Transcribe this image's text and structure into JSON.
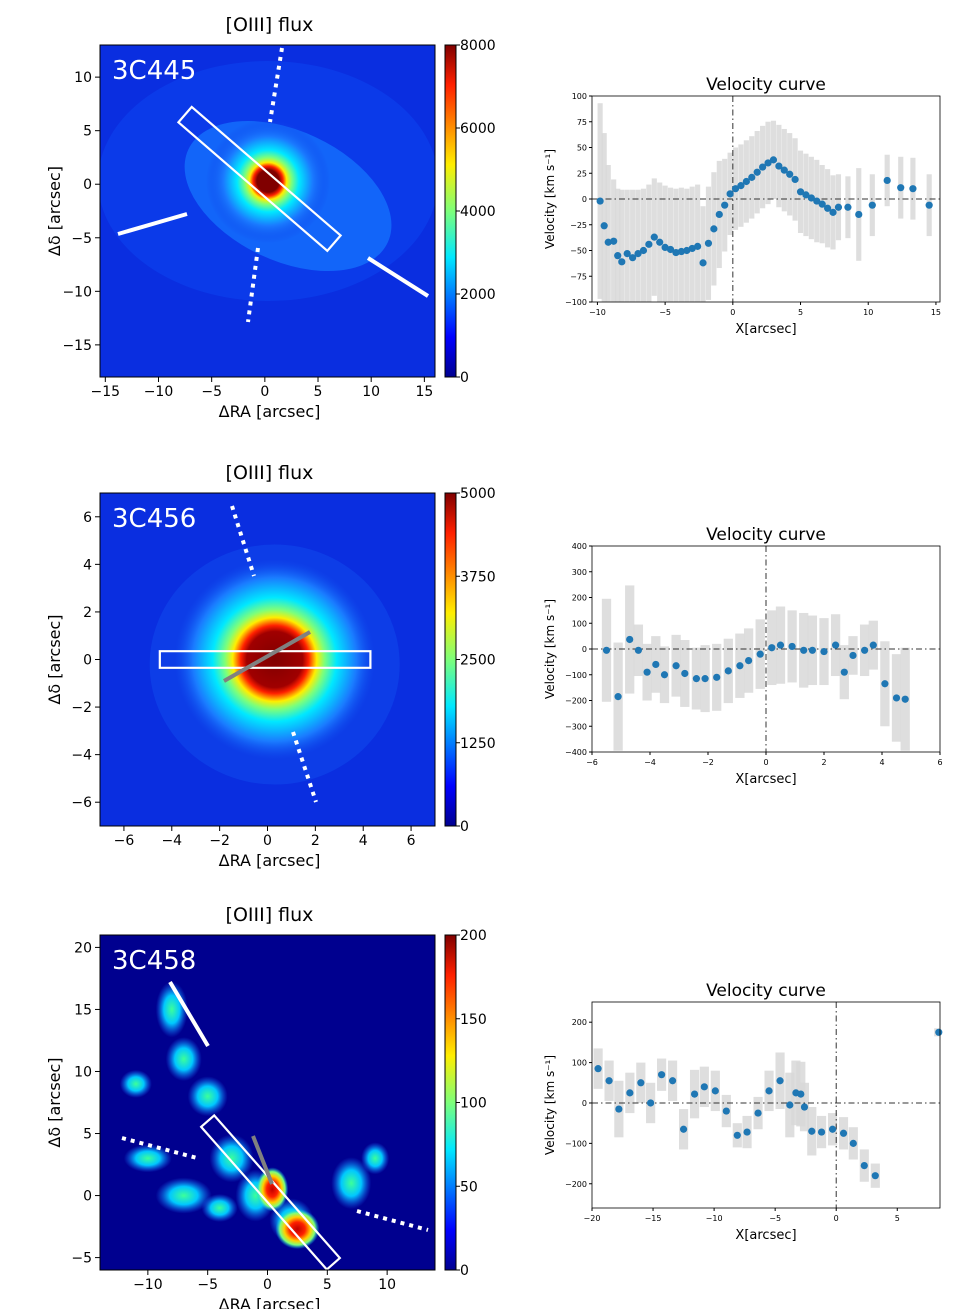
{
  "panels": [
    {
      "source": "3C445",
      "map": {
        "title": "[OIII] flux",
        "xlabel": "ΔRA [arcsec]",
        "ylabel": "Δδ [arcsec]",
        "xlim": [
          -15.5,
          16
        ],
        "ylim": [
          -18,
          13
        ],
        "xticks": [
          -15,
          -10,
          -5,
          0,
          5,
          10,
          15
        ],
        "yticks": [
          -15,
          -10,
          -5,
          0,
          5,
          10
        ],
        "colorbar": {
          "min": 0,
          "max": 8000,
          "ticks": [
            0,
            2000,
            4000,
            6000,
            8000
          ]
        },
        "peak": {
          "x": 0.3,
          "y": 0.3
        },
        "slit": {
          "x1": -7.5,
          "y1": 6.5,
          "x2": 6.5,
          "y2": -5.5,
          "width": 1.9
        }
      },
      "velocity": {
        "title": "Velocity curve",
        "xlabel": "X[arcsec]",
        "ylabel": "Velocity [km s⁻¹]",
        "xlim": [
          -10.4,
          15.3
        ],
        "ylim": [
          -100,
          100
        ],
        "xticks": [
          -10,
          -5,
          0,
          5,
          10,
          15
        ],
        "yticks": [
          -100,
          -75,
          -50,
          -25,
          0,
          25,
          50,
          75,
          100
        ],
        "points": [
          [
            -9.8,
            -2
          ],
          [
            -9.5,
            -26
          ],
          [
            -9.2,
            -42
          ],
          [
            -8.8,
            -41
          ],
          [
            -8.5,
            -55
          ],
          [
            -8.2,
            -61
          ],
          [
            -7.8,
            -53
          ],
          [
            -7.4,
            -57
          ],
          [
            -7.0,
            -53
          ],
          [
            -6.6,
            -50
          ],
          [
            -6.2,
            -44
          ],
          [
            -5.8,
            -37
          ],
          [
            -5.4,
            -42
          ],
          [
            -5.0,
            -47
          ],
          [
            -4.6,
            -49
          ],
          [
            -4.2,
            -52
          ],
          [
            -3.8,
            -51
          ],
          [
            -3.4,
            -50
          ],
          [
            -3.0,
            -48
          ],
          [
            -2.6,
            -46
          ],
          [
            -2.2,
            -62
          ],
          [
            -1.8,
            -43
          ],
          [
            -1.4,
            -29
          ],
          [
            -1.0,
            -15
          ],
          [
            -0.6,
            -6
          ],
          [
            -0.2,
            5
          ],
          [
            0.2,
            10
          ],
          [
            0.6,
            13
          ],
          [
            1.0,
            17
          ],
          [
            1.4,
            21
          ],
          [
            1.8,
            26
          ],
          [
            2.2,
            31
          ],
          [
            2.6,
            35
          ],
          [
            3.0,
            38
          ],
          [
            3.4,
            32
          ],
          [
            3.8,
            28
          ],
          [
            4.2,
            24
          ],
          [
            4.6,
            19
          ],
          [
            5.0,
            7
          ],
          [
            5.4,
            4
          ],
          [
            5.8,
            1
          ],
          [
            6.2,
            -2
          ],
          [
            6.6,
            -5
          ],
          [
            7.0,
            -9
          ],
          [
            7.4,
            -13
          ],
          [
            7.8,
            -8
          ],
          [
            8.5,
            -8
          ],
          [
            9.3,
            -15
          ],
          [
            10.3,
            -6
          ],
          [
            11.4,
            18
          ],
          [
            12.4,
            11
          ],
          [
            13.3,
            10
          ],
          [
            14.5,
            -6
          ]
        ],
        "errors": [
          [
            -9.8,
            95
          ],
          [
            -9.5,
            90
          ],
          [
            -9.2,
            75
          ],
          [
            -8.8,
            60
          ],
          [
            -8.5,
            65
          ],
          [
            -8.2,
            70
          ],
          [
            -7.8,
            62
          ],
          [
            -7.4,
            66
          ],
          [
            -7.0,
            62
          ],
          [
            -6.6,
            60
          ],
          [
            -6.2,
            58
          ],
          [
            -5.8,
            57
          ],
          [
            -5.4,
            58
          ],
          [
            -5.0,
            60
          ],
          [
            -4.6,
            60
          ],
          [
            -4.2,
            62
          ],
          [
            -3.8,
            62
          ],
          [
            -3.4,
            60
          ],
          [
            -3.0,
            60
          ],
          [
            -2.6,
            60
          ],
          [
            -2.2,
            55
          ],
          [
            -1.8,
            55
          ],
          [
            -1.4,
            55
          ],
          [
            -1.0,
            52
          ],
          [
            -0.6,
            45
          ],
          [
            -0.2,
            40
          ],
          [
            0.2,
            40
          ],
          [
            0.6,
            40
          ],
          [
            1.0,
            40
          ],
          [
            1.4,
            40
          ],
          [
            1.8,
            40
          ],
          [
            2.2,
            40
          ],
          [
            2.6,
            40
          ],
          [
            3.0,
            38
          ],
          [
            3.4,
            40
          ],
          [
            3.8,
            40
          ],
          [
            4.2,
            40
          ],
          [
            4.6,
            40
          ],
          [
            5.0,
            40
          ],
          [
            5.4,
            40
          ],
          [
            5.8,
            40
          ],
          [
            6.2,
            40
          ],
          [
            6.6,
            38
          ],
          [
            7.0,
            38
          ],
          [
            7.4,
            36
          ],
          [
            7.8,
            32
          ],
          [
            8.5,
            30
          ],
          [
            9.3,
            45
          ],
          [
            10.3,
            30
          ],
          [
            11.4,
            25
          ],
          [
            12.4,
            30
          ],
          [
            13.3,
            30
          ],
          [
            14.5,
            30
          ]
        ]
      }
    },
    {
      "source": "3C456",
      "map": {
        "title": "[OIII] flux",
        "xlabel": "ΔRA [arcsec]",
        "ylabel": "Δδ [arcsec]",
        "xlim": [
          -7,
          7
        ],
        "ylim": [
          -7,
          7
        ],
        "xticks": [
          -6,
          -4,
          -2,
          0,
          2,
          4,
          6
        ],
        "yticks": [
          -6,
          -4,
          -2,
          0,
          2,
          4,
          6
        ],
        "colorbar": {
          "min": 0,
          "max": 5000,
          "ticks": [
            0,
            1250,
            2500,
            3750,
            5000
          ]
        },
        "peak": {
          "x": 0.3,
          "y": 0
        },
        "slit": {
          "x1": -4.5,
          "y1": 0,
          "x2": 4.3,
          "y2": 0,
          "width": 0.7
        }
      },
      "velocity": {
        "title": "Velocity curve",
        "xlabel": "X[arcsec]",
        "ylabel": "Velocity [km s⁻¹]",
        "xlim": [
          -6,
          6
        ],
        "ylim": [
          -400,
          400
        ],
        "xticks": [
          -6,
          -4,
          -2,
          0,
          2,
          4,
          6
        ],
        "yticks": [
          -400,
          -300,
          -200,
          -100,
          0,
          100,
          200,
          300,
          400
        ],
        "points": [
          [
            -5.5,
            -5
          ],
          [
            -5.1,
            -185
          ],
          [
            -4.7,
            37
          ],
          [
            -4.4,
            -5
          ],
          [
            -4.1,
            -90
          ],
          [
            -3.8,
            -60
          ],
          [
            -3.5,
            -100
          ],
          [
            -3.1,
            -65
          ],
          [
            -2.8,
            -95
          ],
          [
            -2.4,
            -115
          ],
          [
            -2.1,
            -115
          ],
          [
            -1.7,
            -110
          ],
          [
            -1.3,
            -85
          ],
          [
            -0.9,
            -65
          ],
          [
            -0.6,
            -45
          ],
          [
            -0.2,
            -20
          ],
          [
            0.2,
            5
          ],
          [
            0.5,
            15
          ],
          [
            0.9,
            10
          ],
          [
            1.3,
            -5
          ],
          [
            1.6,
            -5
          ],
          [
            2.0,
            -10
          ],
          [
            2.4,
            15
          ],
          [
            2.7,
            -90
          ],
          [
            3.0,
            -25
          ],
          [
            3.4,
            -5
          ],
          [
            3.7,
            15
          ],
          [
            4.1,
            -135
          ],
          [
            4.5,
            -190
          ],
          [
            4.8,
            -195
          ]
        ],
        "errors": [
          [
            -5.5,
            200
          ],
          [
            -5.1,
            210
          ],
          [
            -4.7,
            210
          ],
          [
            -4.4,
            100
          ],
          [
            -4.1,
            110
          ],
          [
            -3.8,
            110
          ],
          [
            -3.5,
            110
          ],
          [
            -3.1,
            120
          ],
          [
            -2.8,
            130
          ],
          [
            -2.4,
            120
          ],
          [
            -2.1,
            130
          ],
          [
            -1.7,
            130
          ],
          [
            -1.3,
            125
          ],
          [
            -0.9,
            125
          ],
          [
            -0.6,
            125
          ],
          [
            -0.2,
            135
          ],
          [
            0.2,
            145
          ],
          [
            0.5,
            150
          ],
          [
            0.9,
            140
          ],
          [
            1.3,
            145
          ],
          [
            1.6,
            135
          ],
          [
            2.0,
            130
          ],
          [
            2.4,
            120
          ],
          [
            2.7,
            105
          ],
          [
            3.0,
            75
          ],
          [
            3.4,
            100
          ],
          [
            3.7,
            95
          ],
          [
            4.1,
            165
          ],
          [
            4.5,
            170
          ],
          [
            4.8,
            200
          ]
        ]
      }
    },
    {
      "source": "3C458",
      "map": {
        "title": "[OIII] flux",
        "xlabel": "ΔRA [arcsec]",
        "ylabel": "Δδ [arcsec]",
        "xlim": [
          -14,
          14
        ],
        "ylim": [
          -6,
          21
        ],
        "xticks": [
          -10,
          -5,
          0,
          5,
          10
        ],
        "yticks": [
          -5,
          0,
          5,
          10,
          15,
          20
        ],
        "colorbar": {
          "min": 0,
          "max": 200,
          "ticks": [
            0,
            50,
            100,
            150,
            200
          ]
        },
        "peak": {
          "x": 0.5,
          "y": 0.5
        },
        "slit": {
          "x1": -5,
          "y1": 6,
          "x2": 5.5,
          "y2": -5.5,
          "width": 1.4
        }
      },
      "velocity": {
        "title": "Velocity curve",
        "xlabel": "X[arcsec]",
        "ylabel": "Velocity [km s⁻¹]",
        "xlim": [
          -20,
          8.5
        ],
        "ylim": [
          -260,
          250
        ],
        "xticks": [
          -20,
          -15,
          -10,
          -5,
          0,
          5
        ],
        "yticks": [
          -200,
          -100,
          0,
          100,
          200
        ],
        "points": [
          [
            -19.5,
            85
          ],
          [
            -18.6,
            55
          ],
          [
            -17.8,
            -15
          ],
          [
            -16.9,
            25
          ],
          [
            -16.0,
            50
          ],
          [
            -15.2,
            0
          ],
          [
            -14.3,
            70
          ],
          [
            -13.4,
            55
          ],
          [
            -12.5,
            -65
          ],
          [
            -11.6,
            22
          ],
          [
            -10.8,
            40
          ],
          [
            -9.9,
            30
          ],
          [
            -9.0,
            -20
          ],
          [
            -8.1,
            -80
          ],
          [
            -7.3,
            -72
          ],
          [
            -6.4,
            -25
          ],
          [
            -5.5,
            30
          ],
          [
            -4.6,
            55
          ],
          [
            -3.8,
            -5
          ],
          [
            -3.3,
            25
          ],
          [
            -2.9,
            22
          ],
          [
            -2.6,
            -10
          ],
          [
            -2.0,
            -70
          ],
          [
            -1.2,
            -72
          ],
          [
            -0.3,
            -65
          ],
          [
            0.6,
            -75
          ],
          [
            1.4,
            -100
          ],
          [
            2.3,
            -155
          ],
          [
            3.2,
            -180
          ],
          [
            8.4,
            175
          ]
        ],
        "errors": [
          [
            -19.5,
            50
          ],
          [
            -18.6,
            50
          ],
          [
            -17.8,
            70
          ],
          [
            -16.9,
            50
          ],
          [
            -16.0,
            50
          ],
          [
            -15.2,
            50
          ],
          [
            -14.3,
            40
          ],
          [
            -13.4,
            50
          ],
          [
            -12.5,
            50
          ],
          [
            -11.6,
            60
          ],
          [
            -10.8,
            50
          ],
          [
            -9.9,
            50
          ],
          [
            -9.0,
            40
          ],
          [
            -8.1,
            30
          ],
          [
            -7.3,
            40
          ],
          [
            -6.4,
            40
          ],
          [
            -5.5,
            50
          ],
          [
            -4.6,
            70
          ],
          [
            -3.8,
            80
          ],
          [
            -3.3,
            80
          ],
          [
            -2.9,
            80
          ],
          [
            -2.6,
            60
          ],
          [
            -2.0,
            60
          ],
          [
            -1.2,
            40
          ],
          [
            -0.3,
            40
          ],
          [
            0.6,
            40
          ],
          [
            1.4,
            40
          ],
          [
            2.3,
            40
          ],
          [
            3.2,
            30
          ],
          [
            8.4,
            10
          ]
        ]
      }
    }
  ]
}
